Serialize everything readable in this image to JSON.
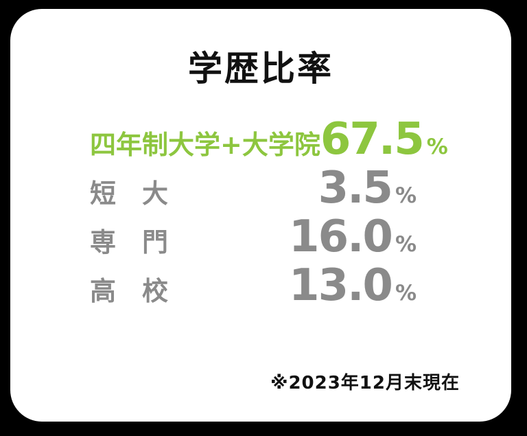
{
  "title": "学歴比率",
  "rows": [
    {
      "label": "四年制大学+大学院",
      "value": "67.5",
      "unit": "%",
      "highlight": true
    },
    {
      "label": "短　大",
      "value": "3.5",
      "unit": "%",
      "highlight": false
    },
    {
      "label": "専　門",
      "value": "16.0",
      "unit": "%",
      "highlight": false
    },
    {
      "label": "高　校",
      "value": "13.0",
      "unit": "%",
      "highlight": false
    }
  ],
  "footnote": "※2023年12月末現在",
  "colors": {
    "background": "#000000",
    "card": "#ffffff",
    "accent_green": "#8dc63f",
    "muted_gray": "#8a8a8a",
    "text_black": "#111111"
  },
  "chart_data": {
    "type": "table",
    "title": "学歴比率",
    "categories": [
      "四年制大学+大学院",
      "短大",
      "専門",
      "高校"
    ],
    "values": [
      67.5,
      3.5,
      16.0,
      13.0
    ],
    "unit": "%",
    "highlighted_category": "四年制大学+大学院",
    "annotation": "※2023年12月末現在",
    "legend_position": "none",
    "grid": false
  }
}
